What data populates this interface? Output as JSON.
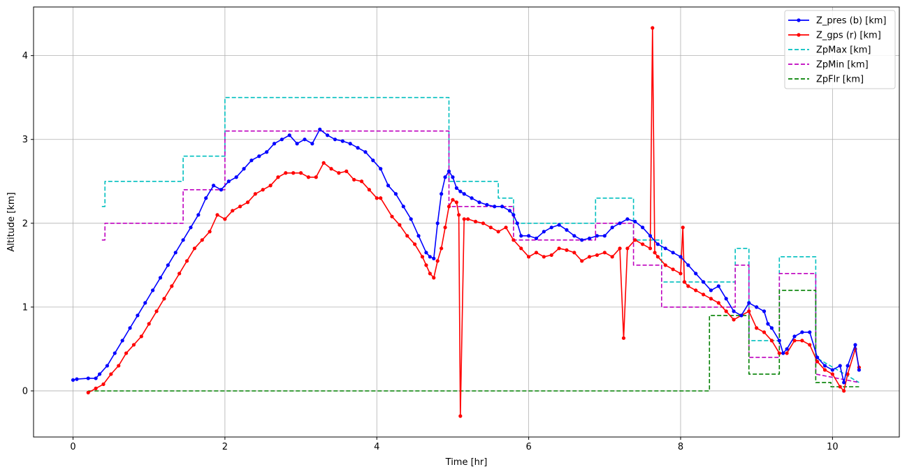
{
  "chart_data": {
    "type": "line",
    "title": "",
    "xlabel": "Time [hr]",
    "ylabel": "Altitude [km]",
    "xlim": [
      -0.52,
      10.88
    ],
    "ylim": [
      -0.55,
      4.58
    ],
    "xticks": [
      0,
      2,
      4,
      6,
      8,
      10
    ],
    "yticks": [
      0,
      1,
      2,
      3,
      4
    ],
    "xtick_labels": [
      "0",
      "2",
      "4",
      "6",
      "8",
      "10"
    ],
    "ytick_labels": [
      "0",
      "1",
      "2",
      "3",
      "4"
    ],
    "grid": true,
    "legend_position": "top-right",
    "series": [
      {
        "name": "Z_pres (b) [km]",
        "color": "#0000ff",
        "style": "solid-dots",
        "x": [
          0.0,
          0.05,
          0.2,
          0.3,
          0.35,
          0.45,
          0.55,
          0.65,
          0.75,
          0.85,
          0.95,
          1.05,
          1.15,
          1.25,
          1.35,
          1.45,
          1.55,
          1.65,
          1.75,
          1.85,
          1.95,
          2.05,
          2.15,
          2.25,
          2.35,
          2.45,
          2.55,
          2.65,
          2.75,
          2.85,
          2.95,
          3.05,
          3.15,
          3.25,
          3.35,
          3.45,
          3.55,
          3.65,
          3.75,
          3.85,
          3.95,
          4.05,
          4.15,
          4.25,
          4.35,
          4.45,
          4.55,
          4.65,
          4.7,
          4.75,
          4.8,
          4.85,
          4.9,
          4.95,
          5.0,
          5.05,
          5.1,
          5.15,
          5.25,
          5.35,
          5.45,
          5.55,
          5.65,
          5.75,
          5.8,
          5.85,
          5.9,
          6.0,
          6.1,
          6.2,
          6.3,
          6.4,
          6.5,
          6.6,
          6.7,
          6.8,
          6.9,
          7.0,
          7.1,
          7.2,
          7.3,
          7.4,
          7.5,
          7.6,
          7.7,
          7.8,
          7.9,
          8.0,
          8.1,
          8.2,
          8.3,
          8.4,
          8.5,
          8.6,
          8.7,
          8.8,
          8.9,
          9.0,
          9.1,
          9.15,
          9.2,
          9.3,
          9.35,
          9.4,
          9.5,
          9.6,
          9.7,
          9.8,
          9.9,
          10.0,
          10.1,
          10.15,
          10.2,
          10.3,
          10.35
        ],
        "y": [
          0.13,
          0.14,
          0.15,
          0.15,
          0.2,
          0.3,
          0.45,
          0.6,
          0.75,
          0.9,
          1.05,
          1.2,
          1.35,
          1.5,
          1.65,
          1.8,
          1.95,
          2.1,
          2.3,
          2.45,
          2.4,
          2.5,
          2.55,
          2.65,
          2.75,
          2.8,
          2.85,
          2.95,
          3.0,
          3.05,
          2.95,
          3.0,
          2.95,
          3.12,
          3.05,
          3.0,
          2.98,
          2.95,
          2.9,
          2.85,
          2.75,
          2.65,
          2.45,
          2.35,
          2.2,
          2.05,
          1.85,
          1.65,
          1.6,
          1.58,
          2.0,
          2.35,
          2.55,
          2.62,
          2.55,
          2.42,
          2.38,
          2.35,
          2.3,
          2.25,
          2.22,
          2.2,
          2.2,
          2.15,
          2.1,
          2.0,
          1.85,
          1.85,
          1.82,
          1.9,
          1.95,
          1.98,
          1.92,
          1.85,
          1.8,
          1.82,
          1.85,
          1.85,
          1.95,
          2.0,
          2.05,
          2.02,
          1.95,
          1.85,
          1.75,
          1.7,
          1.65,
          1.6,
          1.5,
          1.4,
          1.3,
          1.2,
          1.25,
          1.1,
          0.95,
          0.9,
          1.05,
          1.0,
          0.95,
          0.8,
          0.75,
          0.6,
          0.45,
          0.5,
          0.65,
          0.7,
          0.7,
          0.4,
          0.3,
          0.25,
          0.3,
          0.1,
          0.3,
          0.55,
          0.25
        ]
      },
      {
        "name": "Z_gps (r) [km]",
        "color": "#ff0000",
        "style": "solid-dots",
        "x": [
          0.2,
          0.3,
          0.4,
          0.5,
          0.6,
          0.7,
          0.8,
          0.9,
          1.0,
          1.1,
          1.2,
          1.3,
          1.4,
          1.5,
          1.6,
          1.7,
          1.8,
          1.9,
          2.0,
          2.1,
          2.2,
          2.3,
          2.4,
          2.5,
          2.6,
          2.7,
          2.8,
          2.9,
          3.0,
          3.1,
          3.2,
          3.3,
          3.4,
          3.5,
          3.6,
          3.7,
          3.8,
          3.9,
          4.0,
          4.05,
          4.2,
          4.3,
          4.4,
          4.5,
          4.6,
          4.65,
          4.7,
          4.75,
          4.8,
          4.85,
          4.9,
          4.95,
          5.0,
          5.05,
          5.08,
          5.1,
          5.15,
          5.2,
          5.3,
          5.4,
          5.5,
          5.6,
          5.7,
          5.8,
          5.9,
          6.0,
          6.1,
          6.2,
          6.3,
          6.4,
          6.5,
          6.6,
          6.7,
          6.8,
          6.9,
          7.0,
          7.1,
          7.2,
          7.25,
          7.3,
          7.4,
          7.5,
          7.6,
          7.63,
          7.66,
          7.7,
          7.8,
          7.9,
          8.0,
          8.03,
          8.05,
          8.1,
          8.2,
          8.3,
          8.4,
          8.5,
          8.6,
          8.7,
          8.8,
          8.9,
          9.0,
          9.1,
          9.2,
          9.3,
          9.4,
          9.5,
          9.6,
          9.7,
          9.8,
          9.9,
          10.0,
          10.1,
          10.15,
          10.2,
          10.3,
          10.35
        ],
        "y": [
          -0.02,
          0.03,
          0.08,
          0.2,
          0.3,
          0.45,
          0.55,
          0.65,
          0.8,
          0.95,
          1.1,
          1.25,
          1.4,
          1.55,
          1.7,
          1.8,
          1.9,
          2.1,
          2.05,
          2.15,
          2.2,
          2.25,
          2.35,
          2.4,
          2.45,
          2.55,
          2.6,
          2.6,
          2.6,
          2.55,
          2.55,
          2.72,
          2.65,
          2.6,
          2.62,
          2.52,
          2.5,
          2.4,
          2.3,
          2.3,
          2.08,
          1.98,
          1.85,
          1.75,
          1.6,
          1.5,
          1.4,
          1.35,
          1.55,
          1.7,
          1.95,
          2.2,
          2.28,
          2.25,
          2.1,
          -0.3,
          2.05,
          2.05,
          2.02,
          2.0,
          1.95,
          1.9,
          1.95,
          1.8,
          1.7,
          1.6,
          1.65,
          1.6,
          1.62,
          1.7,
          1.68,
          1.65,
          1.55,
          1.6,
          1.62,
          1.65,
          1.6,
          1.7,
          0.63,
          1.7,
          1.8,
          1.75,
          1.7,
          4.33,
          1.65,
          1.6,
          1.5,
          1.45,
          1.4,
          1.95,
          1.3,
          1.25,
          1.2,
          1.15,
          1.1,
          1.05,
          0.95,
          0.85,
          0.9,
          0.95,
          0.75,
          0.7,
          0.6,
          0.45,
          0.45,
          0.6,
          0.6,
          0.55,
          0.35,
          0.25,
          0.2,
          0.05,
          0.0,
          0.2,
          0.5,
          0.28
        ]
      },
      {
        "name": "ZpMax [km]",
        "color": "#00bfbf",
        "style": "dashed",
        "x": [
          0.38,
          0.42,
          0.42,
          1.45,
          1.45,
          2.0,
          2.0,
          4.95,
          4.95,
          5.6,
          5.6,
          5.8,
          5.8,
          6.88,
          6.88,
          7.38,
          7.38,
          7.75,
          7.75,
          8.72,
          8.72,
          8.9,
          8.9,
          9.3,
          9.3,
          9.78,
          9.78,
          10.35
        ],
        "y": [
          2.2,
          2.2,
          2.5,
          2.5,
          2.8,
          2.8,
          3.5,
          3.5,
          2.5,
          2.5,
          2.3,
          2.3,
          2.0,
          2.0,
          2.3,
          2.3,
          1.8,
          1.8,
          1.3,
          1.3,
          1.7,
          1.7,
          0.6,
          0.6,
          1.6,
          1.6,
          0.4,
          0.1
        ]
      },
      {
        "name": "ZpMin [km]",
        "color": "#bf00bf",
        "style": "dashed",
        "x": [
          0.38,
          0.42,
          0.42,
          1.45,
          1.45,
          2.0,
          2.0,
          4.95,
          4.95,
          5.8,
          5.8,
          6.88,
          6.88,
          7.38,
          7.38,
          7.75,
          7.75,
          8.72,
          8.72,
          8.9,
          8.9,
          9.3,
          9.3,
          9.78,
          9.78,
          10.35
        ],
        "y": [
          1.8,
          1.8,
          2.0,
          2.0,
          2.4,
          2.4,
          3.1,
          3.1,
          2.2,
          2.2,
          1.8,
          1.8,
          2.0,
          2.0,
          1.5,
          1.5,
          1.0,
          1.0,
          1.5,
          1.5,
          0.4,
          0.4,
          1.4,
          1.4,
          0.2,
          0.1
        ]
      },
      {
        "name": "ZpFlr [km]",
        "color": "#008000",
        "style": "dashed",
        "x": [
          0.2,
          8.38,
          8.38,
          8.9,
          8.9,
          9.3,
          9.3,
          9.78,
          9.78,
          9.98,
          9.98,
          10.35
        ],
        "y": [
          0.0,
          0.0,
          0.9,
          0.9,
          0.2,
          0.2,
          1.2,
          1.2,
          0.1,
          0.1,
          0.05,
          0.05
        ]
      }
    ]
  }
}
